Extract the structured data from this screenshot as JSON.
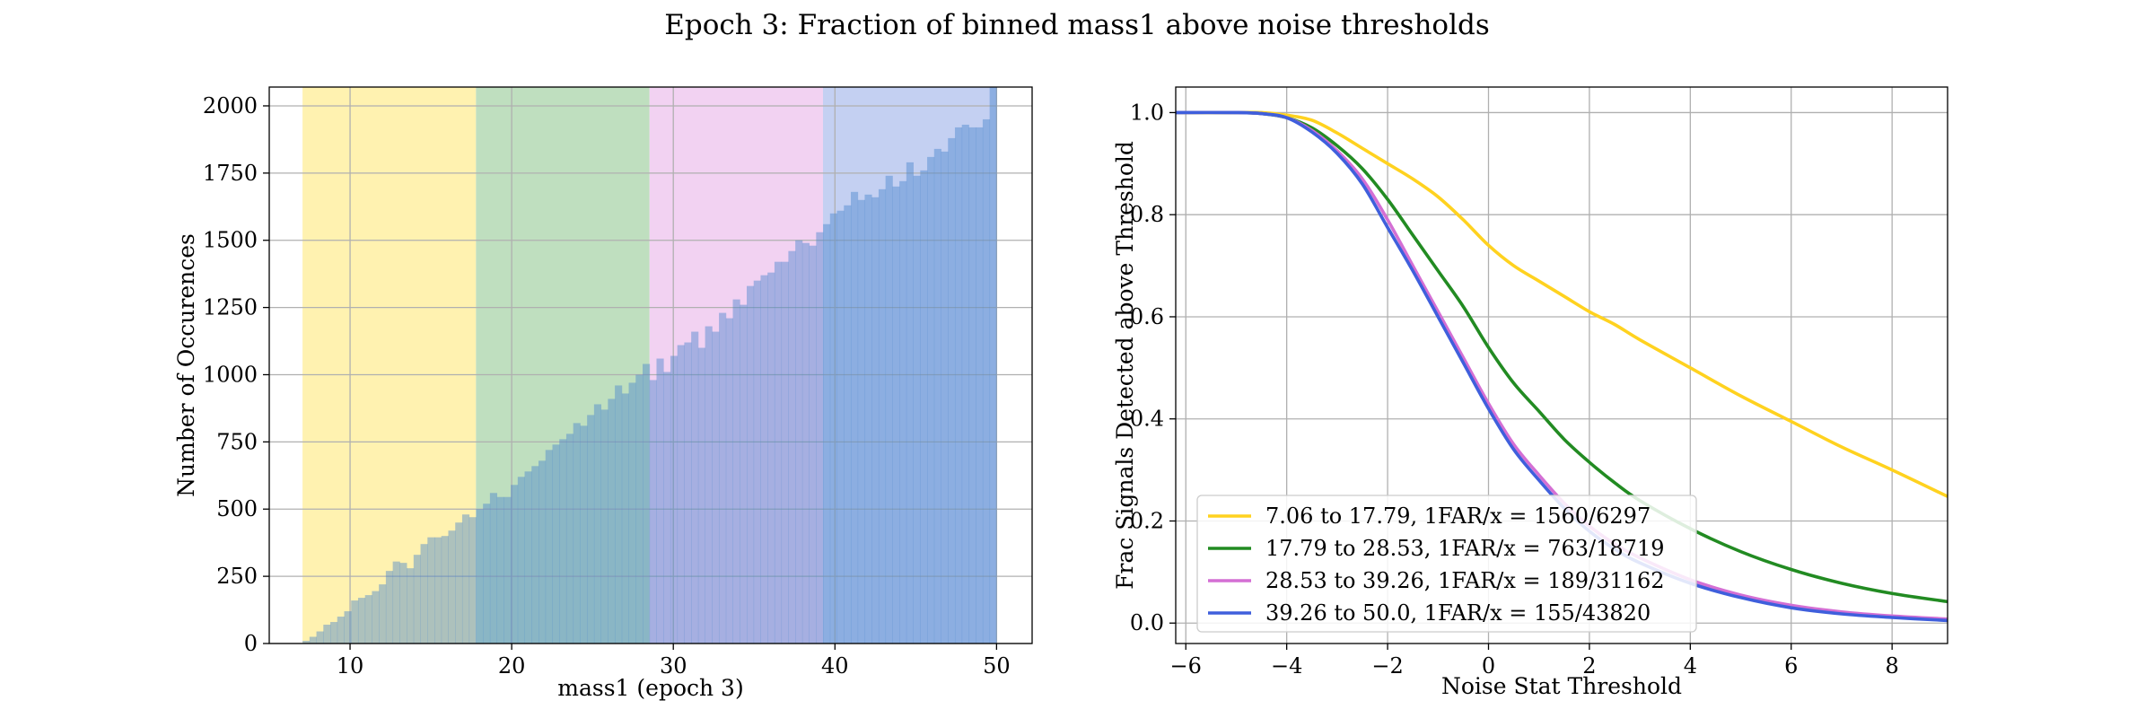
{
  "figure": {
    "title": "Epoch 3: Fraction of binned mass1 above noise thresholds"
  },
  "chart_data": [
    {
      "type": "bar",
      "subtype": "histogram",
      "xlabel": "mass1 (epoch 3)",
      "ylabel": "Number of Occurences",
      "xlim": [
        5,
        52.2
      ],
      "ylim": [
        0,
        2070
      ],
      "xticks": [
        10,
        20,
        30,
        40,
        50
      ],
      "yticks": [
        0,
        250,
        500,
        750,
        1000,
        1250,
        1500,
        1750,
        2000
      ],
      "grid": true,
      "bar_color": "#4a86cd",
      "bin_range": [
        7.06,
        50.0
      ],
      "bin_count": 100,
      "counts": [
        10,
        25,
        45,
        70,
        80,
        100,
        120,
        160,
        170,
        180,
        195,
        220,
        270,
        305,
        300,
        280,
        330,
        370,
        395,
        395,
        400,
        420,
        450,
        480,
        470,
        500,
        520,
        560,
        545,
        545,
        590,
        620,
        640,
        660,
        680,
        720,
        740,
        760,
        780,
        820,
        810,
        850,
        890,
        870,
        910,
        960,
        930,
        970,
        1000,
        1040,
        980,
        1060,
        1010,
        1070,
        1110,
        1120,
        1160,
        1100,
        1180,
        1160,
        1230,
        1210,
        1280,
        1260,
        1330,
        1350,
        1370,
        1380,
        1420,
        1420,
        1460,
        1500,
        1490,
        1480,
        1530,
        1560,
        1600,
        1610,
        1630,
        1680,
        1650,
        1670,
        1660,
        1690,
        1740,
        1700,
        1720,
        1790,
        1740,
        1760,
        1810,
        1840,
        1830,
        1880,
        1920,
        1930,
        1920,
        1920,
        1950,
        2070
      ],
      "shaded_regions": [
        {
          "range": [
            7.06,
            17.79
          ],
          "color": "#fff2b0"
        },
        {
          "range": [
            17.79,
            28.53
          ],
          "color": "#bfdfbf"
        },
        {
          "range": [
            28.53,
            39.26
          ],
          "color": "#f2d2f2"
        },
        {
          "range": [
            39.26,
            50.0
          ],
          "color": "#c4d0f2"
        }
      ]
    },
    {
      "type": "line",
      "xlabel": "Noise Stat Threshold",
      "ylabel": "Frac Signals Detected above Threshold",
      "xlim": [
        -6.2,
        9.1
      ],
      "ylim": [
        -0.04,
        1.05
      ],
      "xticks": [
        -6,
        -4,
        -2,
        0,
        2,
        4,
        6,
        8
      ],
      "xtick_labels": [
        "−6",
        "−4",
        "−2",
        "0",
        "2",
        "4",
        "6",
        "8"
      ],
      "yticks": [
        0.0,
        0.2,
        0.4,
        0.6,
        0.8,
        1.0
      ],
      "ytick_labels": [
        "0.0",
        "0.2",
        "0.4",
        "0.6",
        "0.8",
        "1.0"
      ],
      "grid": true,
      "legend_position": "lower-left",
      "series": [
        {
          "name": "7.06 to 17.79, 1FAR/x = 1560/6297",
          "color": "#ffd21f",
          "x": [
            -6.2,
            -5,
            -4.5,
            -4,
            -3.5,
            -3,
            -2.5,
            -2,
            -1.5,
            -1,
            -0.5,
            0,
            0.5,
            1,
            1.5,
            2,
            2.5,
            3,
            4,
            5,
            6,
            7,
            8,
            9.1
          ],
          "y": [
            1.0,
            1.0,
            1.0,
            0.995,
            0.985,
            0.96,
            0.93,
            0.9,
            0.87,
            0.835,
            0.79,
            0.74,
            0.7,
            0.67,
            0.64,
            0.61,
            0.585,
            0.555,
            0.5,
            0.445,
            0.395,
            0.345,
            0.3,
            0.248
          ]
        },
        {
          "name": "17.79 to 28.53, 1FAR/x = 763/18719",
          "color": "#228b22",
          "x": [
            -6.2,
            -5,
            -4.5,
            -4,
            -3.5,
            -3,
            -2.5,
            -2,
            -1.5,
            -1,
            -0.5,
            0,
            0.5,
            1,
            1.5,
            2,
            2.5,
            3,
            4,
            5,
            6,
            7,
            8,
            9.1
          ],
          "y": [
            1.0,
            1.0,
            0.998,
            0.99,
            0.97,
            0.935,
            0.89,
            0.83,
            0.76,
            0.69,
            0.62,
            0.54,
            0.47,
            0.415,
            0.36,
            0.315,
            0.275,
            0.24,
            0.185,
            0.14,
            0.105,
            0.078,
            0.058,
            0.042
          ]
        },
        {
          "name": "28.53 to 39.26, 1FAR/x = 189/31162",
          "color": "#d46fd4",
          "x": [
            -6.2,
            -5,
            -4.5,
            -4,
            -3.5,
            -3,
            -2.5,
            -2,
            -1.5,
            -1,
            -0.5,
            0,
            0.5,
            1,
            1.5,
            2,
            2.5,
            3,
            4,
            5,
            6,
            7,
            8,
            9.1
          ],
          "y": [
            1.0,
            1.0,
            0.998,
            0.99,
            0.965,
            0.925,
            0.87,
            0.79,
            0.7,
            0.61,
            0.52,
            0.43,
            0.35,
            0.29,
            0.235,
            0.19,
            0.155,
            0.128,
            0.085,
            0.055,
            0.035,
            0.022,
            0.014,
            0.008
          ]
        },
        {
          "name": "39.26 to 50.0, 1FAR/x = 155/43820",
          "color": "#3f5fdc",
          "x": [
            -6.2,
            -5,
            -4.5,
            -4,
            -3.5,
            -3,
            -2.5,
            -2,
            -1.5,
            -1,
            -0.5,
            0,
            0.5,
            1,
            1.5,
            2,
            2.5,
            3,
            4,
            5,
            6,
            7,
            8,
            9.1
          ],
          "y": [
            1.0,
            1.0,
            0.998,
            0.99,
            0.962,
            0.92,
            0.86,
            0.775,
            0.69,
            0.6,
            0.51,
            0.42,
            0.34,
            0.28,
            0.225,
            0.18,
            0.145,
            0.118,
            0.078,
            0.05,
            0.03,
            0.018,
            0.011,
            0.005
          ]
        }
      ]
    }
  ]
}
